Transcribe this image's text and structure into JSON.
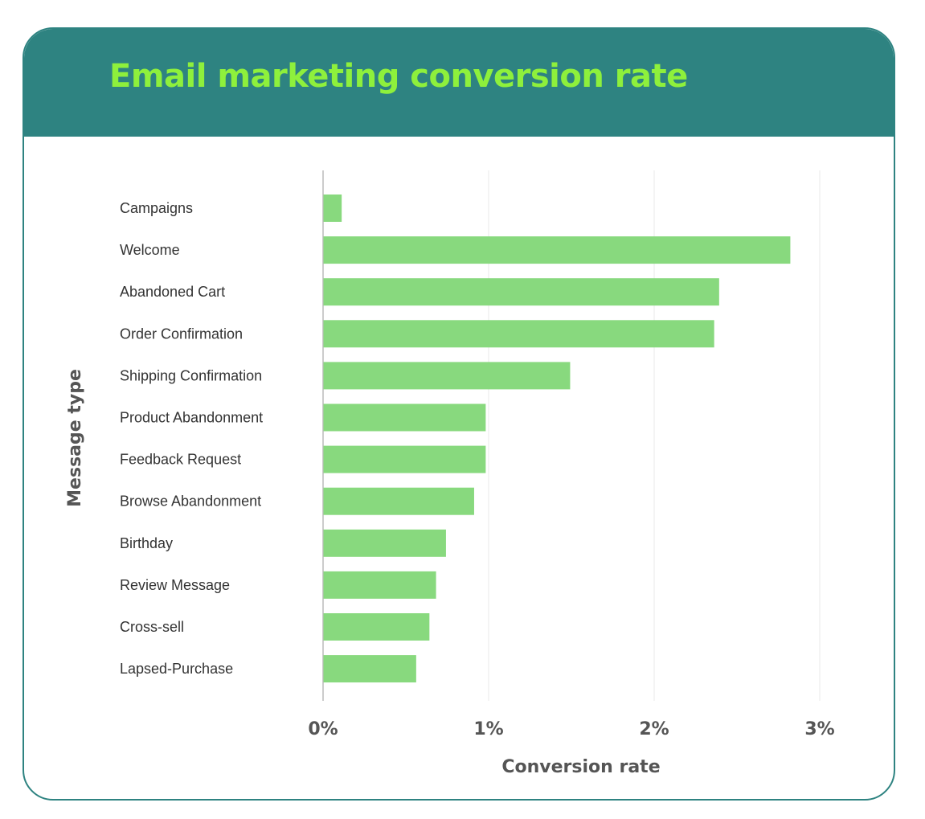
{
  "colors": {
    "header_bg": "#2e8381",
    "title": "#8ef03c",
    "bar": "#88d97e",
    "grid": "#e8e8e8",
    "axis": "#bbbbbb"
  },
  "chart_data": {
    "type": "bar",
    "orientation": "horizontal",
    "title": "Email marketing conversion rate",
    "xlabel": "Conversion rate",
    "ylabel": "Message type",
    "xlim": [
      0,
      3
    ],
    "xticks": [
      0,
      1,
      2,
      3
    ],
    "xtick_labels": [
      "0%",
      "1%",
      "2%",
      "3%"
    ],
    "grid": "vertical",
    "categories": [
      "Campaigns",
      "Welcome",
      "Abandoned Cart",
      "Order Confirmation",
      "Shipping Confirmation",
      "Product Abandonment",
      "Feedback Request",
      "Browse Abandonment",
      "Birthday",
      "Review Message",
      "Cross-sell",
      "Lapsed-Purchase"
    ],
    "values": [
      0.11,
      2.82,
      2.39,
      2.36,
      1.49,
      0.98,
      0.98,
      0.91,
      0.74,
      0.68,
      0.64,
      0.56
    ]
  }
}
